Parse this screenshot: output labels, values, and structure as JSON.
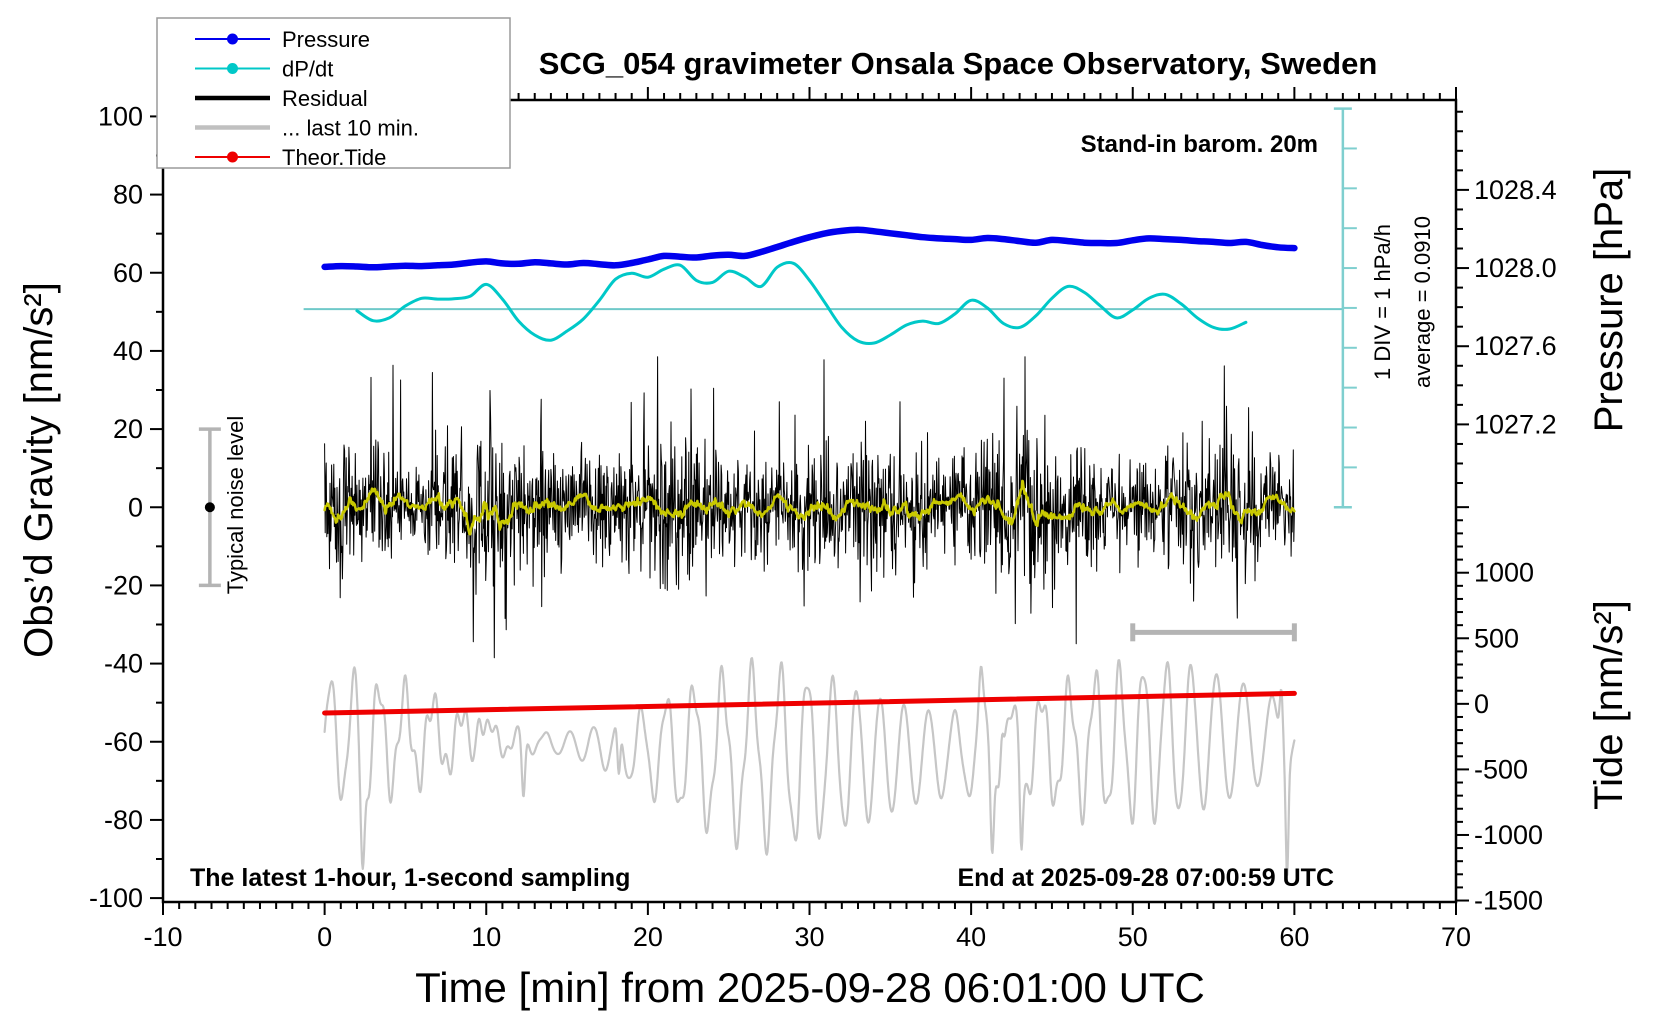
{
  "figure": {
    "title": "SCG_054 gravimeter Onsala Space Observatory, Sweden",
    "xlabel": "Time [min] from 2025-09-28 06:01:00 UTC",
    "ylabel_left": "Obs’d Gravity [nm/s²]",
    "ylabel_pressure": "Pressure [hPa]",
    "ylabel_tide": "Tide [nm/s²]",
    "annotation_barometer": "Stand-in barom. 20m",
    "annotation_sampling": "The latest 1-hour, 1-second sampling",
    "annotation_end": "End at 2025-09-28 07:00:59 UTC",
    "annotation_noise": "Typical noise level",
    "annotation_div": "1 DIV = 1 hPa/h",
    "annotation_average": "average = 0.0910",
    "legend": [
      {
        "label": "Pressure",
        "color": "#0000ee",
        "marker": true,
        "thick": false
      },
      {
        "label": "dP/dt",
        "color": "#00c8c8",
        "marker": true,
        "thick": false
      },
      {
        "label": "Residual",
        "color": "#000000",
        "marker": false,
        "thick": true
      },
      {
        "label": "... last 10 min.",
        "color": "#c0c0c0",
        "marker": false,
        "thick": true
      },
      {
        "label": "Theor.Tide",
        "color": "#ee0000",
        "marker": true,
        "thick": false
      }
    ]
  },
  "chart_data": {
    "type": "line",
    "title": "SCG_054 gravimeter Onsala Space Observatory, Sweden",
    "x_axis": {
      "label": "Time [min] from 2025-09-28 06:01:00 UTC",
      "min": -10,
      "max": 70,
      "major_ticks": [
        -10,
        0,
        10,
        20,
        30,
        40,
        50,
        60,
        70
      ],
      "minor_step": 1
    },
    "y_axis_left": {
      "label": "Obs’d Gravity [nm/s²]",
      "min": -100,
      "max": 100,
      "major_ticks": [
        100,
        80,
        60,
        40,
        20,
        0,
        -20,
        -40,
        -60,
        -80,
        -100
      ],
      "minor_step": 10
    },
    "y_axis_pressure": {
      "label": "Pressure [hPa]",
      "major_ticks": [
        1028.4,
        1028.0,
        1027.6,
        1027.2
      ],
      "minor_step": 0.1,
      "mapping": "1028.0 hPa aligns with +60 nm/s²; 0.4 hPa per 20 nm/s²"
    },
    "y_axis_tide": {
      "label": "Tide [nm/s²]",
      "major_ticks": [
        1000,
        500,
        0,
        -500,
        -1000,
        -1500
      ],
      "minor_step": 100,
      "mapping": "0 nm/s² tide aligns with -50 nm/s² gravity; 500 tide per 16.8 gravity"
    },
    "series": [
      {
        "name": "Pressure",
        "unit": "hPa",
        "color": "#0000ee",
        "width": 6.5,
        "x_start": 0,
        "x_step": 1,
        "values": [
          1028.006,
          1028.01,
          1028.008,
          1028.004,
          1028.008,
          1028.012,
          1028.01,
          1028.014,
          1028.018,
          1028.028,
          1028.034,
          1028.024,
          1028.022,
          1028.03,
          1028.024,
          1028.018,
          1028.026,
          1028.02,
          1028.014,
          1028.026,
          1028.044,
          1028.062,
          1028.058,
          1028.054,
          1028.064,
          1028.068,
          1028.062,
          1028.082,
          1028.108,
          1028.134,
          1028.158,
          1028.178,
          1028.19,
          1028.196,
          1028.188,
          1028.178,
          1028.168,
          1028.158,
          1028.152,
          1028.148,
          1028.144,
          1028.154,
          1028.148,
          1028.138,
          1028.13,
          1028.144,
          1028.138,
          1028.13,
          1028.128,
          1028.128,
          1028.142,
          1028.152,
          1028.148,
          1028.144,
          1028.138,
          1028.134,
          1028.128,
          1028.134,
          1028.118,
          1028.106,
          1028.102
        ]
      },
      {
        "name": "dP/dt",
        "unit": "hPa/h",
        "color": "#00c8c8",
        "width": 3,
        "x_start": 2,
        "x_step": 1,
        "zero_line_gravity": 50,
        "average": 0.091,
        "values": [
          -0.04,
          -0.29,
          -0.22,
          0.08,
          0.27,
          0.25,
          0.26,
          0.32,
          0.62,
          0.25,
          -0.3,
          -0.65,
          -0.78,
          -0.55,
          -0.25,
          0.22,
          0.75,
          0.9,
          0.8,
          1.0,
          1.1,
          0.72,
          0.67,
          0.95,
          0.8,
          0.57,
          1.05,
          1.15,
          0.72,
          0.13,
          -0.46,
          -0.8,
          -0.85,
          -0.65,
          -0.4,
          -0.3,
          -0.36,
          -0.12,
          0.22,
          0.03,
          -0.36,
          -0.46,
          -0.17,
          0.27,
          0.57,
          0.42,
          0.08,
          -0.22,
          -0.02,
          0.27,
          0.37,
          0.13,
          -0.22,
          -0.46,
          -0.5,
          -0.33
        ]
      },
      {
        "name": "Residual",
        "unit": "nm/s²",
        "color": "#000000",
        "width": 1,
        "synthetic_noise": {
          "mean": 0,
          "typical_std": 8,
          "peak": 38,
          "duration_min": 60,
          "sampling": "1-second"
        },
        "description": "1 Hz residual noise band, mean 0, mostly within ±20, spikes to ±38"
      },
      {
        "name": "Residual 1-min mean",
        "unit": "nm/s²",
        "color": "#c8c800",
        "width": 2.5,
        "synthetic_noise": {
          "mean": 0,
          "typical_std": 1.5
        },
        "description": "smoothed residual (yellow), small wiggles within ±2 of zero"
      },
      {
        "name": "... last 10 min.",
        "unit": "nm/s² (tide axis)",
        "color": "#c6c6c6",
        "width": 2.2,
        "synthetic_oscillation": {
          "center_tide": -350,
          "period_min": 1.6,
          "swing_tide": [
            -1350,
            450
          ]
        },
        "description": "gray fast oscillation along bottom, irregular amplitude, deep spikes near 2, 41, 43 and 60 min"
      },
      {
        "name": "Theor.Tide",
        "unit": "nm/s² (tide axis)",
        "color": "#ee0000",
        "width": 5,
        "x": [
          0,
          60
        ],
        "values": [
          -70,
          80
        ],
        "description": "nearly straight slowly rising red line"
      }
    ],
    "noise_level_bar": {
      "x_min": -7.1,
      "center_gravity": 0,
      "half_range_gravity": 20
    },
    "last10_bracket": {
      "x_from": 50,
      "x_to": 60,
      "gravity": -32
    },
    "div_scale_bar": {
      "x_min": 63,
      "from_gravity": 0,
      "to_gravity": 102,
      "divisions": 10,
      "div_equals": "1 hPa/h"
    },
    "colors": {
      "zero_line": "#6fc9c9",
      "div_bar": "#7fcfcf",
      "gray_marks": "#b4b4b4",
      "frame": "#000000"
    }
  }
}
